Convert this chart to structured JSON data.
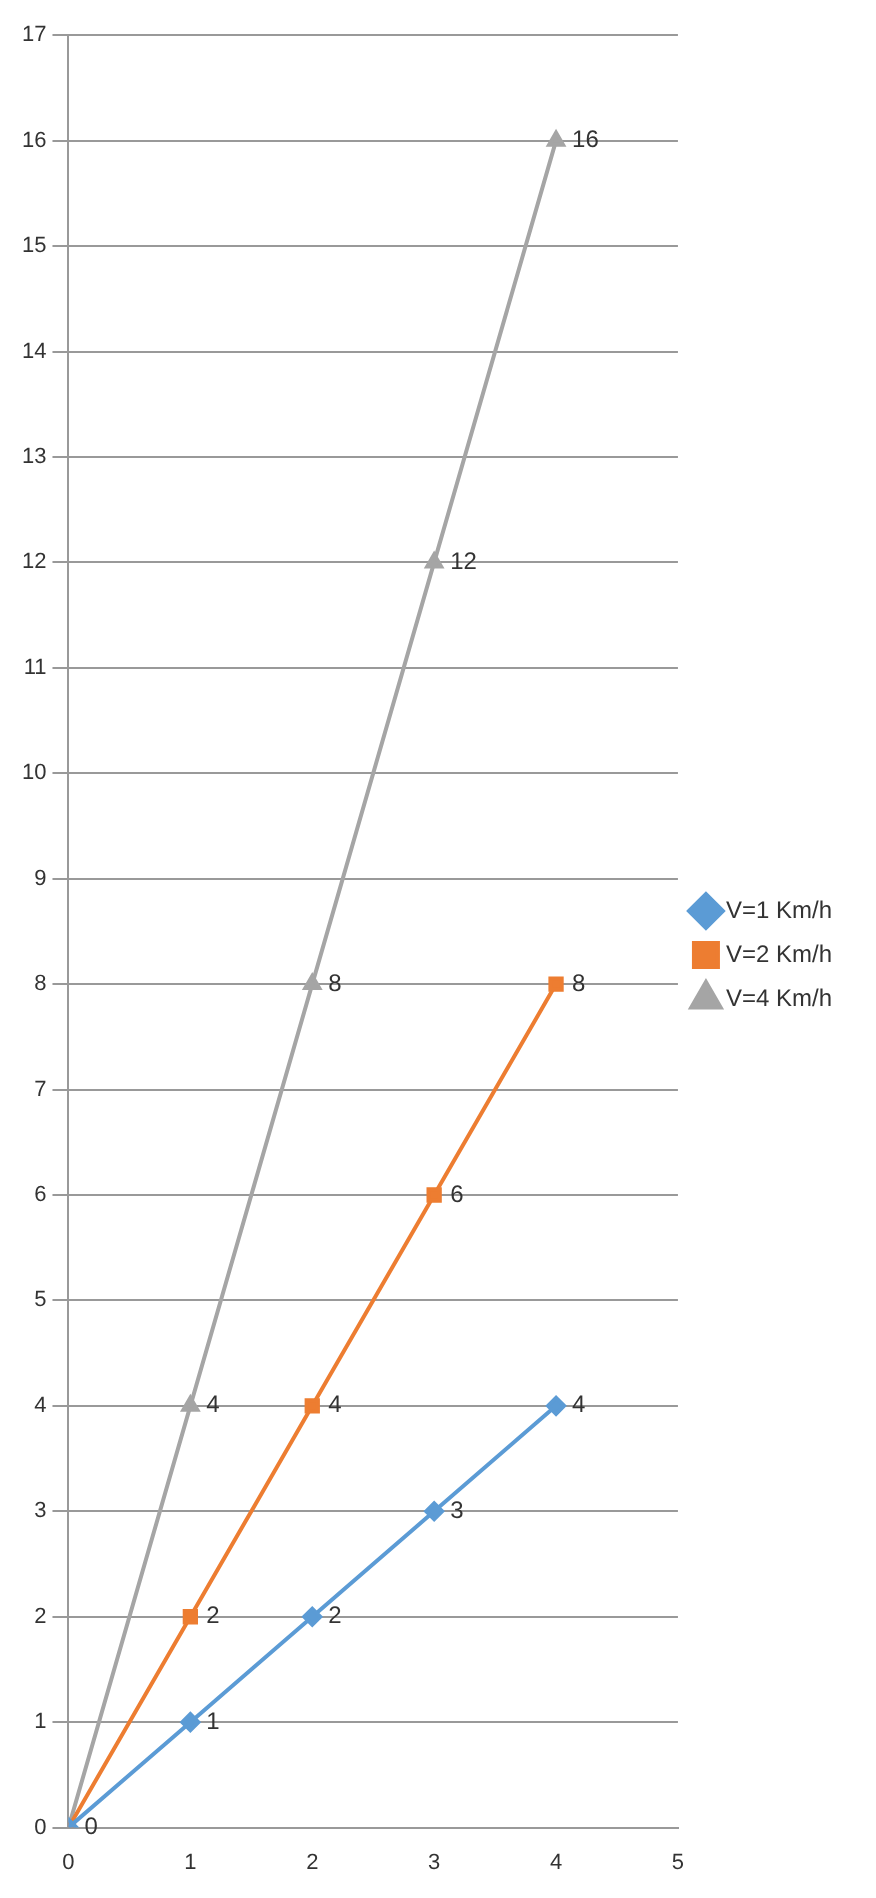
{
  "chart_data": {
    "type": "line",
    "x": [
      0,
      1,
      2,
      3,
      4
    ],
    "series": [
      {
        "name": "V=1 Km/h",
        "color": "#5b9bd5",
        "marker": "diamond",
        "values": [
          0,
          1,
          2,
          3,
          4
        ],
        "value_labels": [
          "0",
          "1",
          "2",
          "3",
          "4"
        ]
      },
      {
        "name": "V=2 Km/h",
        "color": "#ed7d31",
        "marker": "square",
        "values": [
          0,
          2,
          4,
          6,
          8
        ],
        "value_labels": [
          null,
          "2",
          "4",
          "6",
          "8"
        ]
      },
      {
        "name": "V=4 Km/h",
        "color": "#a5a5a5",
        "marker": "triangle",
        "values": [
          0,
          4,
          8,
          12,
          16
        ],
        "value_labels": [
          null,
          "4",
          "8",
          "12",
          "16"
        ]
      }
    ],
    "xlim": [
      0,
      5
    ],
    "xticks": [
      0,
      1,
      2,
      3,
      4,
      5
    ],
    "ylim": [
      0,
      17
    ],
    "yticks": [
      0,
      1,
      2,
      3,
      4,
      5,
      6,
      7,
      8,
      9,
      10,
      11,
      12,
      13,
      14,
      15,
      16,
      17
    ],
    "grid": "y",
    "legend": "right"
  }
}
